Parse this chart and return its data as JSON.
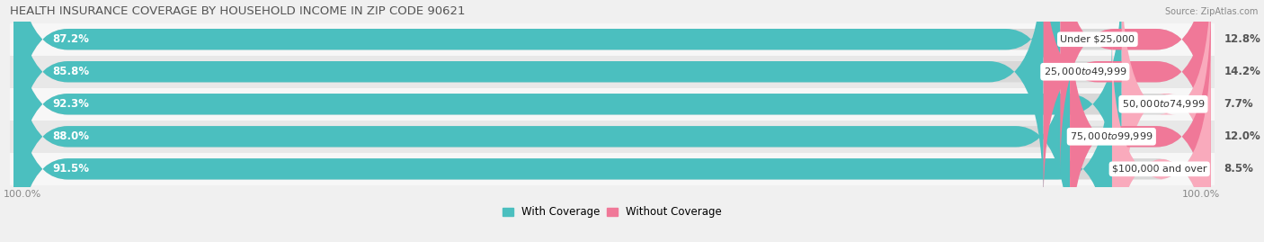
{
  "title": "HEALTH INSURANCE COVERAGE BY HOUSEHOLD INCOME IN ZIP CODE 90621",
  "source": "Source: ZipAtlas.com",
  "categories": [
    "Under $25,000",
    "$25,000 to $49,999",
    "$50,000 to $74,999",
    "$75,000 to $99,999",
    "$100,000 and over"
  ],
  "with_coverage": [
    87.2,
    85.8,
    92.3,
    88.0,
    91.5
  ],
  "without_coverage": [
    12.8,
    14.2,
    7.7,
    12.0,
    8.5
  ],
  "color_with": "#4BBFBF",
  "color_with_dark": "#2D9DA0",
  "color_without": "#F07898",
  "color_without_light": "#F9AABC",
  "bg_color": "#f0f0f0",
  "row_bg_light": "#f7f7f7",
  "row_bg_dark": "#e8e8e8",
  "pill_bg": "#d8d8d8",
  "title_fontsize": 9.5,
  "label_fontsize": 8.5,
  "cat_fontsize": 8,
  "tick_fontsize": 8,
  "legend_fontsize": 8.5,
  "bar_height": 0.65,
  "total_width": 100.0
}
